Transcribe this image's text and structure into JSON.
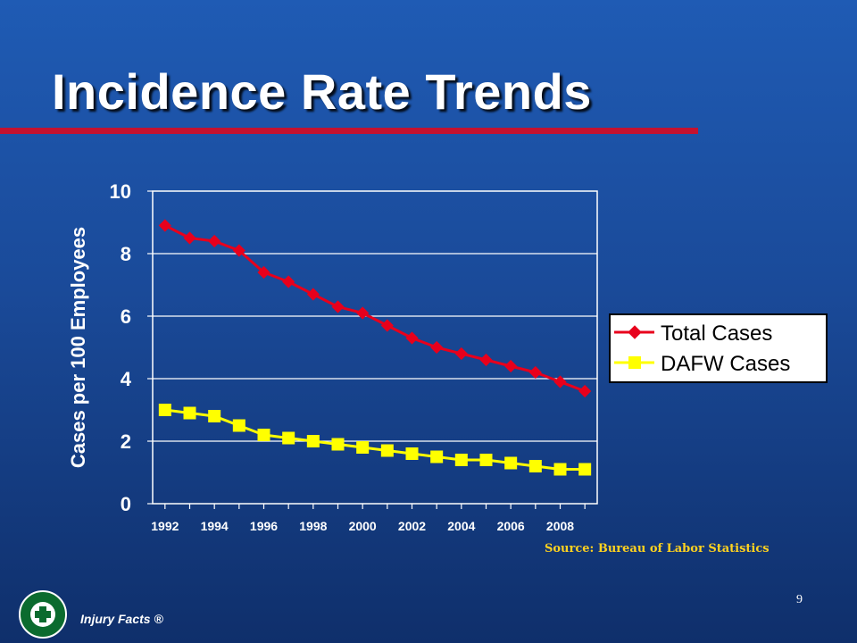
{
  "slide": {
    "title": "Incidence Rate Trends",
    "source": "Source: Bureau of Labor Statistics",
    "page_number": "9",
    "brand": "Injury Facts ®",
    "logo_text": "NATIONAL SAFETY COUNCIL"
  },
  "colors": {
    "background_top": "#1f5bb4",
    "background_bottom": "#0f2f6b",
    "title_rule": "#c41230",
    "total_series": "#e8001c",
    "dafw_series": "#ffff00",
    "source_text": "#ffd21f"
  },
  "chart_data": {
    "type": "line",
    "title": "",
    "xlabel": "",
    "ylabel": "Cases per 100 Employees",
    "ylim": [
      0,
      10
    ],
    "yticks": [
      "0",
      "2",
      "4",
      "6",
      "8",
      "10"
    ],
    "xticks": [
      "1992",
      "1994",
      "1996",
      "1998",
      "2000",
      "2002",
      "2004",
      "2006",
      "2008"
    ],
    "x": [
      1992,
      1993,
      1994,
      1995,
      1996,
      1997,
      1998,
      1999,
      2000,
      2001,
      2002,
      2003,
      2004,
      2005,
      2006,
      2007,
      2008,
      2009
    ],
    "grid": "horizontal",
    "legend_position": "right",
    "series": [
      {
        "name": "Total Cases",
        "marker": "diamond",
        "color": "#e8001c",
        "values": [
          8.9,
          8.5,
          8.4,
          8.1,
          7.4,
          7.1,
          6.7,
          6.3,
          6.1,
          5.7,
          5.3,
          5.0,
          4.8,
          4.6,
          4.4,
          4.2,
          3.9,
          3.6
        ]
      },
      {
        "name": "DAFW Cases",
        "marker": "square",
        "color": "#ffff00",
        "values": [
          3.0,
          2.9,
          2.8,
          2.5,
          2.2,
          2.1,
          2.0,
          1.9,
          1.8,
          1.7,
          1.6,
          1.5,
          1.4,
          1.4,
          1.3,
          1.2,
          1.1,
          1.1
        ]
      }
    ]
  }
}
